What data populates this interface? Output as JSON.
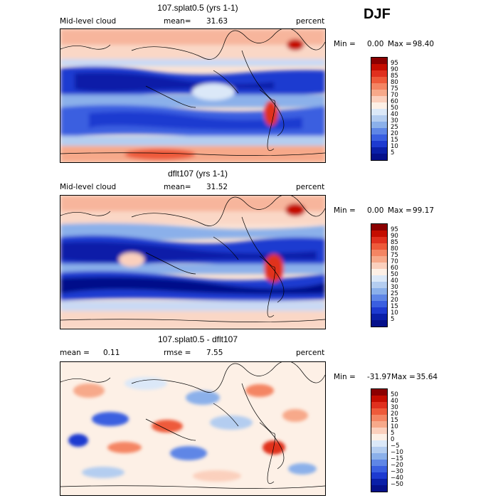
{
  "season": "DJF",
  "panels": [
    {
      "title": "107.splat0.5 (yrs 1-1)",
      "left_label": "Mid-level cloud",
      "center_label": "mean=",
      "center_value": "31.63",
      "right_label": "percent",
      "min_label": "Min =",
      "min_value": "0.00",
      "max_label": "Max =",
      "max_value": "98.40",
      "colorbar": {
        "labels": [
          "95",
          "90",
          "85",
          "80",
          "75",
          "70",
          "60",
          "50",
          "40",
          "30",
          "25",
          "20",
          "15",
          "10",
          "5"
        ],
        "colors": [
          "#8b0000",
          "#c40d00",
          "#e0301e",
          "#ee5a3a",
          "#f48563",
          "#f7a98a",
          "#fbd0bd",
          "#fdf0e6",
          "#dbe8f8",
          "#b4cdf0",
          "#8bb0ea",
          "#5f86e6",
          "#3a5fe0",
          "#1d3ad0",
          "#0a1fa8",
          "#05108a"
        ]
      }
    },
    {
      "title": "dflt107 (yrs 1-1)",
      "left_label": "Mid-level cloud",
      "center_label": "mean=",
      "center_value": "31.52",
      "right_label": "percent",
      "min_label": "Min =",
      "min_value": "0.00",
      "max_label": "Max =",
      "max_value": "99.17",
      "colorbar": {
        "labels": [
          "95",
          "90",
          "85",
          "80",
          "75",
          "70",
          "60",
          "50",
          "40",
          "30",
          "25",
          "20",
          "15",
          "10",
          "5"
        ],
        "colors": [
          "#8b0000",
          "#c40d00",
          "#e0301e",
          "#ee5a3a",
          "#f48563",
          "#f7a98a",
          "#fbd0bd",
          "#fdf0e6",
          "#dbe8f8",
          "#b4cdf0",
          "#8bb0ea",
          "#5f86e6",
          "#3a5fe0",
          "#1d3ad0",
          "#0a1fa8",
          "#05108a"
        ]
      }
    },
    {
      "title": "107.splat0.5 - dflt107",
      "left_label": "mean =",
      "left_value": "0.11",
      "center_label": "rmse =",
      "center_value": "7.55",
      "right_label": "percent",
      "min_label": "Min =",
      "min_value": "-31.97",
      "max_label": "Max =",
      "max_value": "35.64",
      "colorbar": {
        "labels": [
          "50",
          "40",
          "30",
          "20",
          "15",
          "10",
          "5",
          "0",
          "−5",
          "−10",
          "−15",
          "−20",
          "−30",
          "−40",
          "−50"
        ],
        "colors": [
          "#8b0000",
          "#c40d00",
          "#e0301e",
          "#ee5a3a",
          "#f48563",
          "#f7a98a",
          "#fbd0bd",
          "#fdf0e6",
          "#dbe8f8",
          "#b4cdf0",
          "#8bb0ea",
          "#5f86e6",
          "#3a5fe0",
          "#1d3ad0",
          "#0a1fa8",
          "#05108a"
        ]
      }
    }
  ],
  "chart_data": [
    {
      "type": "heatmap",
      "title": "107.splat0.5 (yrs 1-1)",
      "variable": "Mid-level cloud",
      "units": "percent",
      "mean": 31.63,
      "min": 0.0,
      "max": 98.4,
      "levels": [
        5,
        10,
        15,
        20,
        25,
        30,
        40,
        50,
        60,
        70,
        75,
        80,
        85,
        90,
        95
      ]
    },
    {
      "type": "heatmap",
      "title": "dflt107 (yrs 1-1)",
      "variable": "Mid-level cloud",
      "units": "percent",
      "mean": 31.52,
      "min": 0.0,
      "max": 99.17,
      "levels": [
        5,
        10,
        15,
        20,
        25,
        30,
        40,
        50,
        60,
        70,
        75,
        80,
        85,
        90,
        95
      ]
    },
    {
      "type": "heatmap",
      "title": "107.splat0.5 - dflt107",
      "units": "percent",
      "mean": 0.11,
      "rmse": 7.55,
      "min": -31.97,
      "max": 35.64,
      "levels": [
        -50,
        -40,
        -30,
        -20,
        -15,
        -10,
        -5,
        0,
        5,
        10,
        15,
        20,
        30,
        40,
        50
      ]
    }
  ]
}
